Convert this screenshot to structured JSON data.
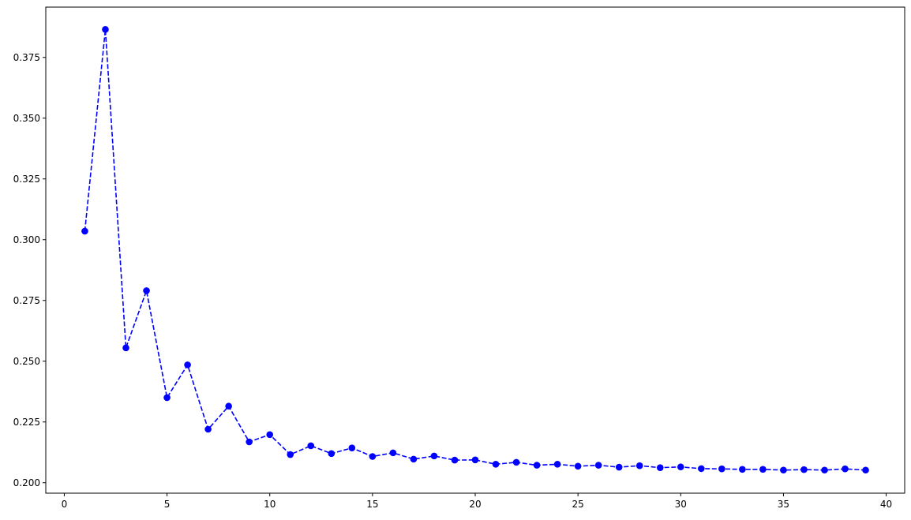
{
  "chart_data": {
    "type": "line",
    "title": "",
    "xlabel": "",
    "ylabel": "",
    "xlim": [
      -0.9,
      40.9
    ],
    "ylim": [
      0.1957,
      0.3957
    ],
    "xticks": [
      0,
      5,
      10,
      15,
      20,
      25,
      30,
      35,
      40
    ],
    "xtick_labels": [
      "0",
      "5",
      "10",
      "15",
      "20",
      "25",
      "30",
      "35",
      "40"
    ],
    "yticks": [
      0.2,
      0.225,
      0.25,
      0.275,
      0.3,
      0.325,
      0.35,
      0.375
    ],
    "ytick_labels": [
      "0.200",
      "0.225",
      "0.250",
      "0.275",
      "0.300",
      "0.325",
      "0.350",
      "0.375"
    ],
    "grid": false,
    "series": [
      {
        "color": "#0000ff",
        "linestyle": "dashed",
        "marker": "circle",
        "x": [
          1,
          2,
          3,
          4,
          5,
          6,
          7,
          8,
          9,
          10,
          11,
          12,
          13,
          14,
          15,
          16,
          17,
          18,
          19,
          20,
          21,
          22,
          23,
          24,
          25,
          26,
          27,
          28,
          29,
          30,
          31,
          32,
          33,
          34,
          35,
          36,
          37,
          38,
          39
        ],
        "y": [
          0.3035,
          0.3865,
          0.2555,
          0.279,
          0.235,
          0.2485,
          0.222,
          0.2315,
          0.2168,
          0.2198,
          0.2116,
          0.2152,
          0.212,
          0.2143,
          0.2108,
          0.2123,
          0.2097,
          0.211,
          0.2093,
          0.2094,
          0.2076,
          0.2084,
          0.2072,
          0.2076,
          0.2068,
          0.2072,
          0.2064,
          0.207,
          0.2062,
          0.2065,
          0.2058,
          0.2057,
          0.2055,
          0.2055,
          0.2052,
          0.2054,
          0.2052,
          0.2057,
          0.2052
        ]
      }
    ]
  }
}
